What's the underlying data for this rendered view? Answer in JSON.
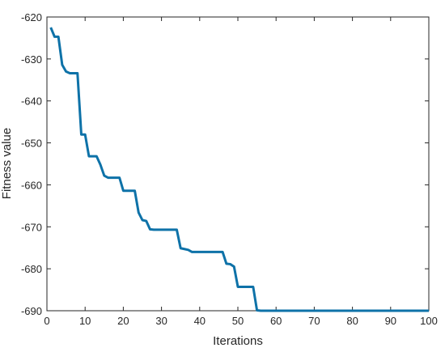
{
  "chart_data": {
    "type": "line",
    "xlabel": "Iterations",
    "ylabel": "Fitness value",
    "xlim": [
      0,
      100
    ],
    "ylim": [
      -690,
      -620
    ],
    "xticks": [
      "0",
      "10",
      "20",
      "30",
      "40",
      "50",
      "60",
      "70",
      "80",
      "90",
      "100"
    ],
    "yticks": [
      "-620",
      "-630",
      "-640",
      "-650",
      "-660",
      "-670",
      "-680",
      "-690"
    ],
    "grid": false,
    "line_color": "#0e72a8",
    "series": [
      {
        "x": [
          1,
          2,
          3,
          4,
          5,
          6,
          7,
          8,
          9,
          10,
          11,
          12,
          13,
          14,
          15,
          16,
          17,
          18,
          19,
          20,
          21,
          22,
          23,
          24,
          25,
          26,
          27,
          28,
          29,
          30,
          31,
          32,
          33,
          34,
          35,
          36,
          37,
          38,
          39,
          40,
          41,
          42,
          43,
          44,
          45,
          46,
          47,
          48,
          49,
          50,
          51,
          52,
          53,
          54,
          55,
          56,
          57,
          58,
          59,
          60,
          65,
          70,
          75,
          80,
          85,
          90,
          95,
          100
        ],
        "y": [
          -622.5,
          -624.7,
          -624.7,
          -631.4,
          -633.0,
          -633.4,
          -633.4,
          -633.4,
          -648.0,
          -648.0,
          -653.2,
          -653.2,
          -653.2,
          -655.2,
          -657.8,
          -658.3,
          -658.3,
          -658.3,
          -658.3,
          -661.4,
          -661.4,
          -661.4,
          -661.4,
          -666.6,
          -668.4,
          -668.6,
          -670.6,
          -670.7,
          -670.7,
          -670.7,
          -670.7,
          -670.7,
          -670.7,
          -670.7,
          -675.1,
          -675.3,
          -675.5,
          -676.0,
          -676.0,
          -676.0,
          -676.0,
          -676.0,
          -676.0,
          -676.0,
          -676.0,
          -676.0,
          -678.8,
          -678.9,
          -679.5,
          -684.3,
          -684.3,
          -684.3,
          -684.3,
          -684.3,
          -689.9,
          -690.0,
          -690.0,
          -690.0,
          -690.0,
          -690.0,
          -690.0,
          -690.0,
          -690.0,
          -690.0,
          -690.0,
          -690.0,
          -690.0,
          -690.0
        ]
      }
    ]
  }
}
